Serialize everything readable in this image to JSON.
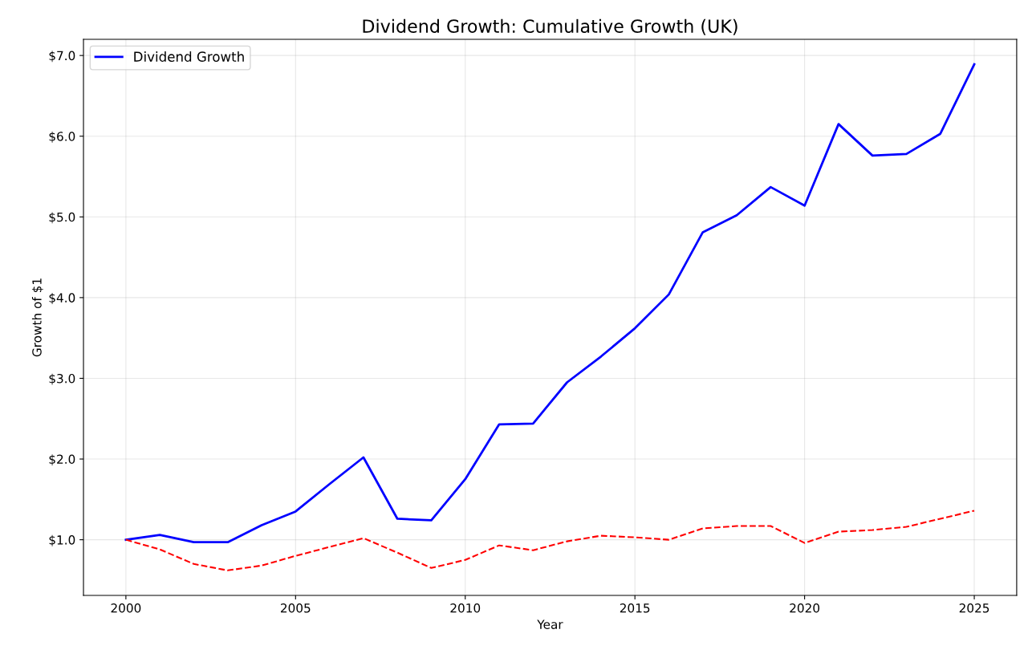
{
  "chart_data": {
    "type": "line",
    "title": "Dividend Growth: Cumulative Growth (UK)",
    "xlabel": "Year",
    "ylabel": "Growth of $1",
    "x": [
      2000,
      2001,
      2002,
      2003,
      2004,
      2005,
      2006,
      2007,
      2008,
      2009,
      2010,
      2011,
      2012,
      2013,
      2014,
      2015,
      2016,
      2017,
      2018,
      2019,
      2020,
      2021,
      2022,
      2023,
      2024,
      2025
    ],
    "series": [
      {
        "name": "Dividend Growth",
        "color": "#0000ff",
        "line_style": "solid",
        "values": [
          1.0,
          1.06,
          0.97,
          0.97,
          1.18,
          1.35,
          1.69,
          2.02,
          1.26,
          1.24,
          1.75,
          2.43,
          2.44,
          2.95,
          3.27,
          3.62,
          4.04,
          4.81,
          5.02,
          5.37,
          5.14,
          6.15,
          5.76,
          5.78,
          6.03,
          6.89
        ]
      },
      {
        "color": "#ff0000",
        "line_style": "dashed",
        "values": [
          1.0,
          0.88,
          0.7,
          0.62,
          0.68,
          0.8,
          0.91,
          1.02,
          0.84,
          0.65,
          0.75,
          0.93,
          0.87,
          0.98,
          1.05,
          1.03,
          1.0,
          1.14,
          1.17,
          1.17,
          0.96,
          1.1,
          1.12,
          1.16,
          1.26,
          1.36
        ]
      }
    ],
    "xlim": [
      1998.75,
      2026.25
    ],
    "ylim": [
      0.31,
      7.2
    ],
    "xticks": [
      2000,
      2005,
      2010,
      2015,
      2020,
      2025
    ],
    "yticks": [
      {
        "value": 1,
        "label": "$1.0"
      },
      {
        "value": 2,
        "label": "$2.0"
      },
      {
        "value": 3,
        "label": "$3.0"
      },
      {
        "value": 4,
        "label": "$4.0"
      },
      {
        "value": 5,
        "label": "$5.0"
      },
      {
        "value": 6,
        "label": "$6.0"
      },
      {
        "value": 7,
        "label": "$7.0"
      }
    ],
    "grid": true,
    "legend": "top left",
    "marker": "none"
  }
}
